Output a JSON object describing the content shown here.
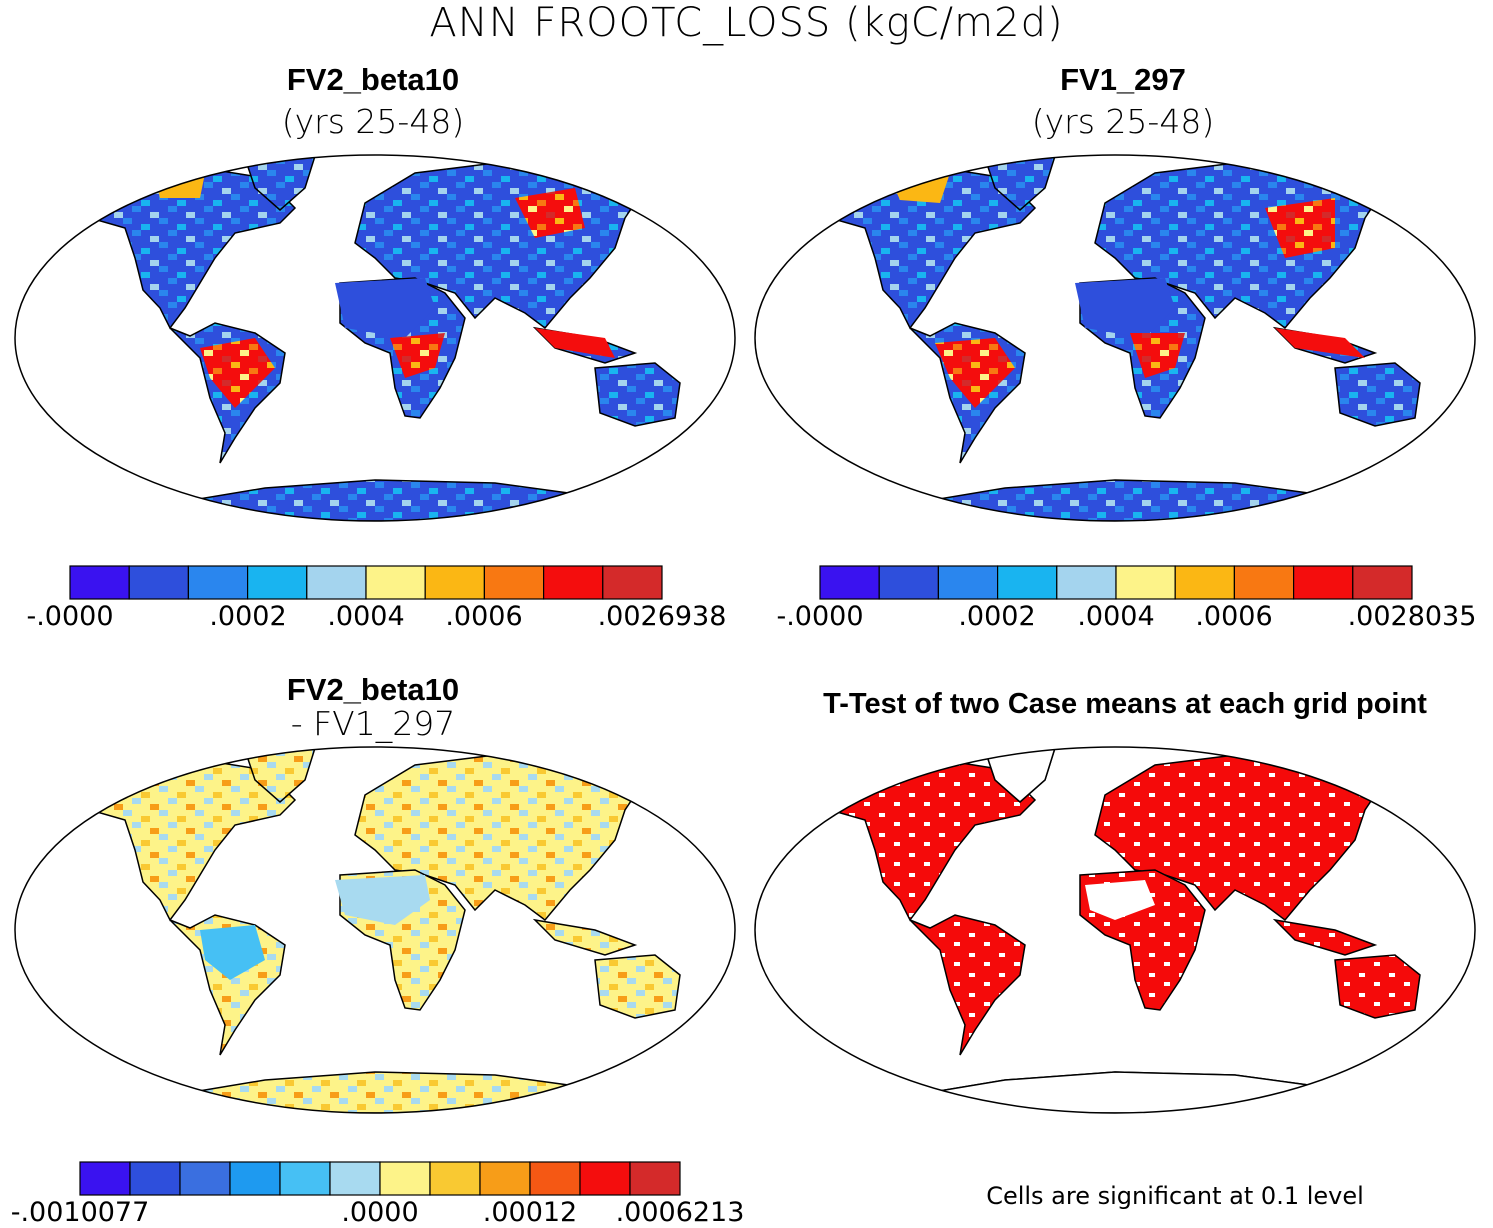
{
  "title": "ANN FROOTC_LOSS (kgC/m2d)",
  "panels": {
    "p1": {
      "title": "FV2_beta10",
      "subtitle": "(yrs 25-48)"
    },
    "p2": {
      "title": "FV1_297",
      "subtitle": "(yrs 25-48)"
    },
    "p3": {
      "title": "FV2_beta10",
      "subtitle": "- FV1_297"
    },
    "p4": {
      "title": "T-Test of two Case means at each grid point",
      "note": "Cells are significant at 0.1 level"
    }
  },
  "colorbars": {
    "cb1": {
      "colors": [
        "#3a12f0",
        "#2e4fdc",
        "#2a86ee",
        "#19b4f0",
        "#a4d4ee",
        "#fdf389",
        "#fbb714",
        "#f87812",
        "#f40d0d",
        "#d42a2a"
      ],
      "labels": [
        "-.0000",
        ".0002",
        ".0004",
        ".0006",
        ".0026938"
      ]
    },
    "cb2": {
      "colors": [
        "#3a12f0",
        "#2e4fdc",
        "#2a86ee",
        "#19b4f0",
        "#a4d4ee",
        "#fdf389",
        "#fbb714",
        "#f87812",
        "#f40d0d",
        "#d42a2a"
      ],
      "labels": [
        "-.0000",
        ".0002",
        ".0004",
        ".0006",
        ".0028035"
      ]
    },
    "cb3": {
      "colors": [
        "#3a12f0",
        "#2e4fdc",
        "#3a6fe0",
        "#1e9af0",
        "#46c0f4",
        "#a8daf0",
        "#fdf389",
        "#f9c932",
        "#f79d18",
        "#f55814",
        "#f40d0d",
        "#d42a2a"
      ],
      "labels": [
        "-.0010077",
        ".0000",
        ".00012",
        ".0006213"
      ]
    }
  },
  "map_colors": {
    "ocean": "#ffffff",
    "ttest_signif": "#f50a0a",
    "coast": "#000000"
  }
}
